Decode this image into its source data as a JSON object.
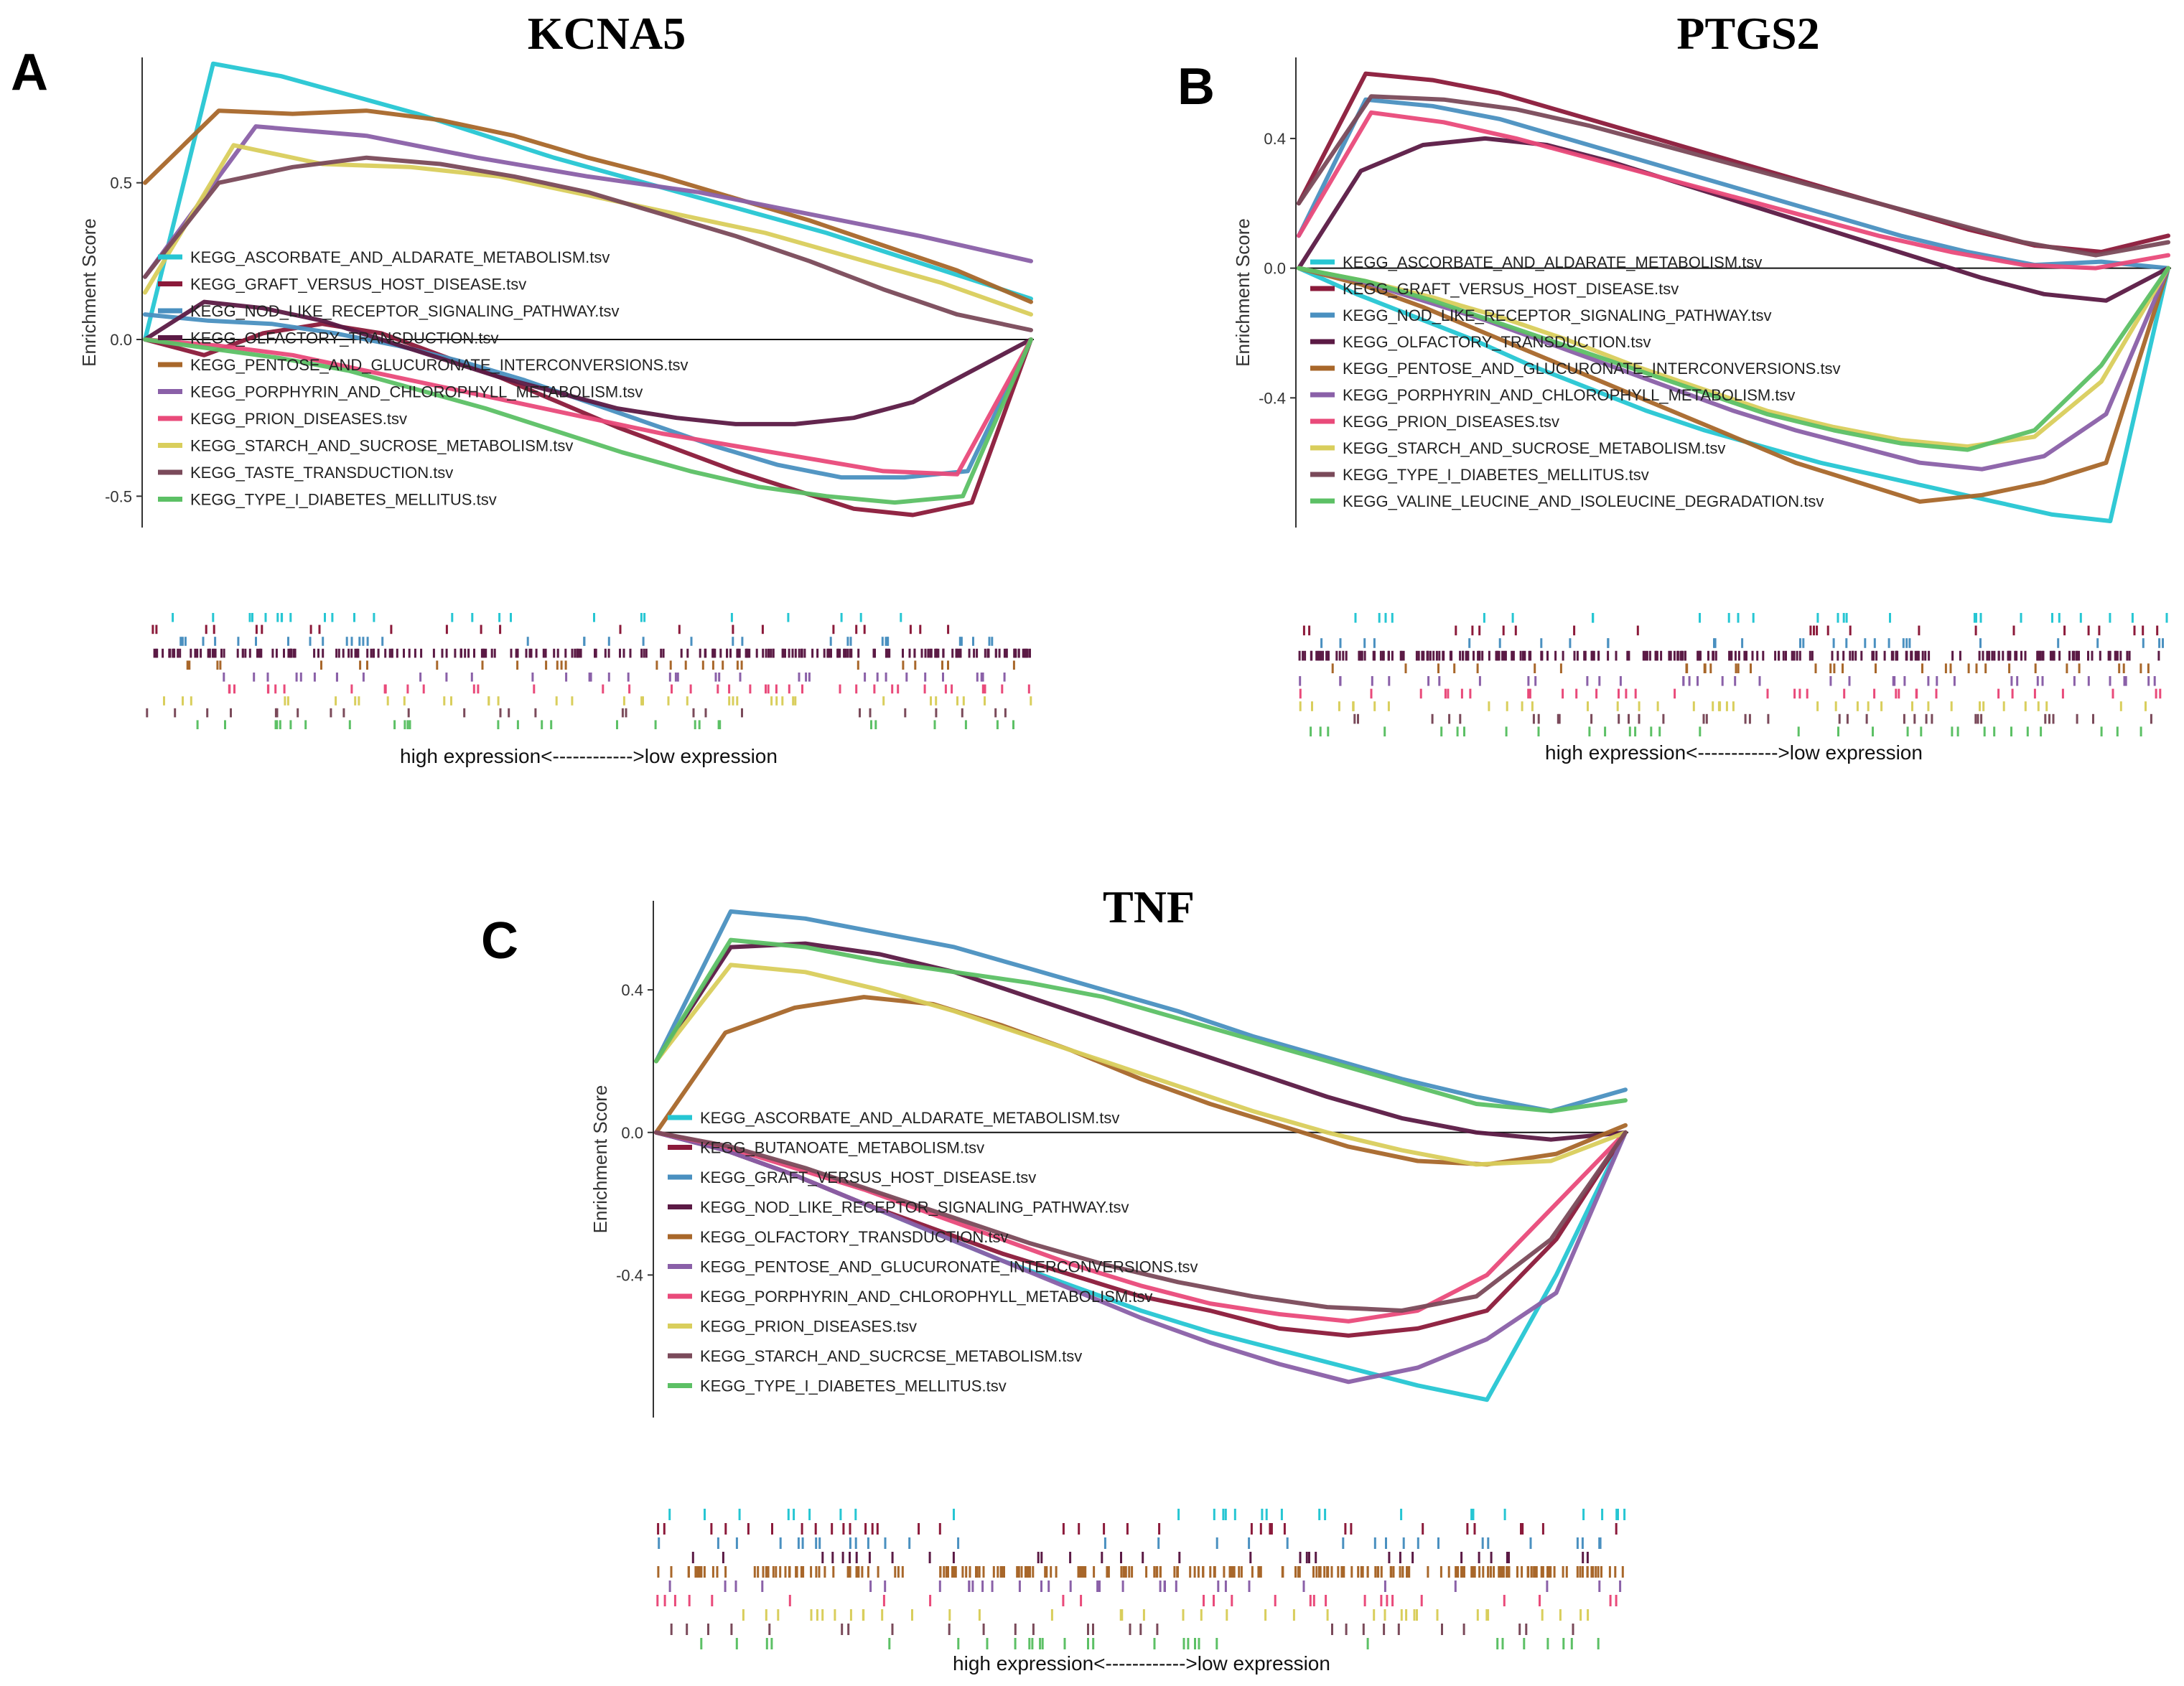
{
  "chart_data": [
    {
      "type": "line",
      "panel_letter": "A",
      "title": "KCNA5",
      "ylabel": "Enrichment Score",
      "xlabel": "high expression<------------>low expression",
      "ylim": [
        -0.6,
        0.9
      ],
      "yticks": [
        0.5,
        0.0,
        -0.5
      ],
      "ytick_labels": [
        "0.5",
        "0.0",
        "-0.5"
      ],
      "series": [
        {
          "name": "KEGG_ASCORBATE_AND_ALDARATE_METABOLISM.tsv",
          "color": "#26C6D3",
          "values": [
            0,
            0.88,
            0.84,
            0.78,
            0.72,
            0.65,
            0.58,
            0.52,
            0.46,
            0.4,
            0.34,
            0.27,
            0.2,
            0.13
          ]
        },
        {
          "name": "KEGG_GRAFT_VERSUS_HOST_DISEASE.tsv",
          "color": "#8B1A3A",
          "values": [
            0,
            -0.05,
            0.02,
            0.05,
            0.02,
            -0.05,
            -0.12,
            -0.2,
            -0.28,
            -0.35,
            -0.42,
            -0.48,
            -0.54,
            -0.56,
            -0.52,
            0
          ]
        },
        {
          "name": "KEGG_NOD_LIKE_RECEPTOR_SIGNALING_PATHWAY.tsv",
          "color": "#4A90C0",
          "values": [
            0.08,
            0.06,
            0.05,
            0.02,
            -0.02,
            -0.07,
            -0.13,
            -0.2,
            -0.27,
            -0.34,
            -0.4,
            -0.44,
            -0.44,
            -0.42,
            0
          ]
        },
        {
          "name": "KEGG_OLFACTORY_TRANSDUCTION.tsv",
          "color": "#5B1A45",
          "values": [
            0,
            0.12,
            0.1,
            0.06,
            0.0,
            -0.06,
            -0.12,
            -0.17,
            -0.22,
            -0.25,
            -0.27,
            -0.27,
            -0.25,
            -0.2,
            -0.1,
            0
          ]
        },
        {
          "name": "KEGG_PENTOSE_AND_GLUCURONATE_INTERCONVERSIONS.tsv",
          "color": "#A8672A",
          "values": [
            0.5,
            0.73,
            0.72,
            0.73,
            0.7,
            0.65,
            0.58,
            0.52,
            0.45,
            0.38,
            0.3,
            0.22,
            0.12
          ]
        },
        {
          "name": "KEGG_PORPHYRIN_AND_CHLOROPHYLL_METABOLISM.tsv",
          "color": "#8A60A8",
          "values": [
            0.2,
            0.68,
            0.65,
            0.58,
            0.52,
            0.47,
            0.4,
            0.33,
            0.25
          ]
        },
        {
          "name": "KEGG_PRION_DISEASES.tsv",
          "color": "#E94A7A",
          "values": [
            0,
            -0.02,
            -0.05,
            -0.1,
            -0.15,
            -0.2,
            -0.25,
            -0.3,
            -0.34,
            -0.38,
            -0.42,
            -0.43,
            0
          ]
        },
        {
          "name": "KEGG_STARCH_AND_SUCROSE_METABOLISM.tsv",
          "color": "#D9CE5C",
          "values": [
            0.15,
            0.62,
            0.56,
            0.55,
            0.52,
            0.46,
            0.4,
            0.34,
            0.26,
            0.18,
            0.08
          ]
        },
        {
          "name": "KEGG_TASTE_TRANSDUCTION.tsv",
          "color": "#7A4A5A",
          "values": [
            0.2,
            0.5,
            0.55,
            0.58,
            0.56,
            0.52,
            0.47,
            0.4,
            0.33,
            0.25,
            0.16,
            0.08,
            0.03
          ]
        },
        {
          "name": "KEGG_TYPE_I_DIABETES_MELLITUS.tsv",
          "color": "#5CC065",
          "values": [
            0,
            -0.03,
            -0.06,
            -0.1,
            -0.16,
            -0.22,
            -0.29,
            -0.36,
            -0.42,
            -0.47,
            -0.5,
            -0.52,
            -0.5,
            0
          ]
        }
      ]
    },
    {
      "type": "line",
      "panel_letter": "B",
      "title": "PTGS2",
      "ylabel": "Enrichment Score",
      "xlabel": "high expression<------------>low expression",
      "ylim": [
        -0.8,
        0.65
      ],
      "yticks": [
        0.4,
        0.0,
        -0.4
      ],
      "ytick_labels": [
        "0.4",
        "0.0",
        "-0.4"
      ],
      "series": [
        {
          "name": "KEGG_ASCORBATE_AND_ALDARATE_METABOLISM.tsv",
          "color": "#26C6D3",
          "values": [
            0,
            -0.08,
            -0.15,
            -0.22,
            -0.3,
            -0.37,
            -0.44,
            -0.5,
            -0.55,
            -0.6,
            -0.64,
            -0.68,
            -0.72,
            -0.76,
            -0.78,
            0
          ]
        },
        {
          "name": "KEGG_GRAFT_VERSUS_HOST_DISEASE.tsv",
          "color": "#8B1A3A",
          "values": [
            0.2,
            0.6,
            0.58,
            0.54,
            0.48,
            0.42,
            0.36,
            0.3,
            0.24,
            0.18,
            0.12,
            0.07,
            0.05,
            0.1
          ]
        },
        {
          "name": "KEGG_NOD_LIKE_RECEPTOR_SIGNALING_PATHWAY.tsv",
          "color": "#4A90C0",
          "values": [
            0.1,
            0.52,
            0.5,
            0.46,
            0.4,
            0.34,
            0.28,
            0.22,
            0.16,
            0.1,
            0.05,
            0.01,
            0.02,
            0.0
          ]
        },
        {
          "name": "KEGG_OLFACTORY_TRANSDUCTION.tsv",
          "color": "#5B1A45",
          "values": [
            0,
            0.3,
            0.38,
            0.4,
            0.38,
            0.33,
            0.27,
            0.21,
            0.15,
            0.09,
            0.03,
            -0.03,
            -0.08,
            -0.1,
            0
          ]
        },
        {
          "name": "KEGG_PENTOSE_AND_GLUCURONATE_INTERCONVERSIONS.tsv",
          "color": "#A8672A",
          "values": [
            0,
            -0.05,
            -0.12,
            -0.2,
            -0.28,
            -0.36,
            -0.44,
            -0.52,
            -0.6,
            -0.66,
            -0.72,
            -0.7,
            -0.66,
            -0.6,
            0
          ]
        },
        {
          "name": "KEGG_PORPHYRIN_AND_CHLOROPHYLL_METABOLISM.tsv",
          "color": "#8A60A8",
          "values": [
            0,
            -0.04,
            -0.1,
            -0.16,
            -0.23,
            -0.3,
            -0.37,
            -0.44,
            -0.5,
            -0.55,
            -0.6,
            -0.62,
            -0.58,
            -0.45,
            0
          ]
        },
        {
          "name": "KEGG_PRION_DISEASES.tsv",
          "color": "#E94A7A",
          "values": [
            0.1,
            0.48,
            0.45,
            0.4,
            0.34,
            0.28,
            0.22,
            0.16,
            0.1,
            0.05,
            0.01,
            0.0,
            0.04
          ]
        },
        {
          "name": "KEGG_STARCH_AND_SUCROSE_METABOLISM.tsv",
          "color": "#D9CE5C",
          "values": [
            0,
            -0.04,
            -0.09,
            -0.15,
            -0.22,
            -0.3,
            -0.37,
            -0.44,
            -0.49,
            -0.53,
            -0.55,
            -0.52,
            -0.35,
            0
          ]
        },
        {
          "name": "KEGG_TYPE_I_DIABETES_MELLITUS.tsv",
          "color": "#7A4A5A",
          "values": [
            0.2,
            0.53,
            0.52,
            0.49,
            0.44,
            0.38,
            0.32,
            0.26,
            0.2,
            0.14,
            0.08,
            0.04,
            0.08
          ]
        },
        {
          "name": "KEGG_VALINE_LEUCINE_AND_ISOLEUCINE_DEGRADATION.tsv",
          "color": "#5CC065",
          "values": [
            0,
            -0.04,
            -0.1,
            -0.17,
            -0.24,
            -0.31,
            -0.38,
            -0.45,
            -0.5,
            -0.54,
            -0.56,
            -0.5,
            -0.3,
            0
          ]
        }
      ]
    },
    {
      "type": "line",
      "panel_letter": "C",
      "title": "TNF",
      "ylabel": "Enrichment Score",
      "xlabel": "high expression<------------>low expression",
      "ylim": [
        -0.8,
        0.65
      ],
      "yticks": [
        0.4,
        0.0,
        -0.4
      ],
      "ytick_labels": [
        "0.4",
        "0.0",
        "-0.4"
      ],
      "series": [
        {
          "name": "KEGG_ASCORBATE_AND_ALDARATE_METABOLISM.tsv",
          "color": "#26C6D3",
          "values": [
            0,
            -0.05,
            -0.12,
            -0.2,
            -0.28,
            -0.36,
            -0.43,
            -0.5,
            -0.56,
            -0.61,
            -0.66,
            -0.71,
            -0.75,
            -0.4,
            0
          ]
        },
        {
          "name": "KEGG_BUTANOATE_METABOLISM.tsv",
          "color": "#8B1A3A",
          "values": [
            0,
            -0.05,
            -0.12,
            -0.2,
            -0.27,
            -0.34,
            -0.4,
            -0.46,
            -0.5,
            -0.55,
            -0.57,
            -0.55,
            -0.5,
            -0.3,
            0
          ]
        },
        {
          "name": "KEGG_GRAFT_VERSUS_HOST_DISEASE.tsv",
          "color": "#4A90C0",
          "values": [
            0.2,
            0.62,
            0.6,
            0.56,
            0.52,
            0.46,
            0.4,
            0.34,
            0.27,
            0.21,
            0.15,
            0.1,
            0.06,
            0.12
          ]
        },
        {
          "name": "KEGG_NOD_LIKE_RECEPTOR_SIGNALING_PATHWAY.tsv",
          "color": "#5B1A45",
          "values": [
            0.2,
            0.52,
            0.53,
            0.5,
            0.45,
            0.38,
            0.31,
            0.24,
            0.17,
            0.1,
            0.04,
            0.0,
            -0.02,
            0
          ]
        },
        {
          "name": "KEGG_OLFACTORY_TRANSDUCTION.tsv",
          "color": "#A8672A",
          "values": [
            0,
            0.28,
            0.35,
            0.38,
            0.36,
            0.3,
            0.23,
            0.15,
            0.08,
            0.02,
            -0.04,
            -0.08,
            -0.09,
            -0.06,
            0.02
          ]
        },
        {
          "name": "KEGG_PENTOSE_AND_GLUCURONATE_INTERCONVERSIONS.tsv",
          "color": "#8A60A8",
          "values": [
            0,
            -0.05,
            -0.12,
            -0.2,
            -0.28,
            -0.36,
            -0.44,
            -0.52,
            -0.59,
            -0.65,
            -0.7,
            -0.66,
            -0.58,
            -0.45,
            0
          ]
        },
        {
          "name": "KEGG_PORPHYRIN_AND_CHLOROPHYLL_METABOLISM.tsv",
          "color": "#E94A7A",
          "values": [
            0,
            -0.04,
            -0.1,
            -0.16,
            -0.23,
            -0.3,
            -0.37,
            -0.43,
            -0.48,
            -0.51,
            -0.53,
            -0.5,
            -0.4,
            -0.2,
            0
          ]
        },
        {
          "name": "KEGG_PRION_DISEASES.tsv",
          "color": "#D9CE5C",
          "values": [
            0.2,
            0.47,
            0.45,
            0.4,
            0.34,
            0.27,
            0.2,
            0.13,
            0.06,
            0.0,
            -0.05,
            -0.09,
            -0.08,
            0.0
          ]
        },
        {
          "name": "KEGG_STARCH_AND_SUCRCSE_METABOLISM.tsv",
          "color": "#7A4A5A",
          "values": [
            0,
            -0.04,
            -0.1,
            -0.17,
            -0.24,
            -0.31,
            -0.37,
            -0.42,
            -0.46,
            -0.49,
            -0.5,
            -0.46,
            -0.3,
            0
          ]
        },
        {
          "name": "KEGG_TYPE_I_DIABETES_MELLITUS.tsv",
          "color": "#5CC065",
          "values": [
            0.2,
            0.54,
            0.52,
            0.48,
            0.45,
            0.42,
            0.38,
            0.32,
            0.26,
            0.2,
            0.14,
            0.08,
            0.06,
            0.09
          ]
        }
      ]
    }
  ]
}
